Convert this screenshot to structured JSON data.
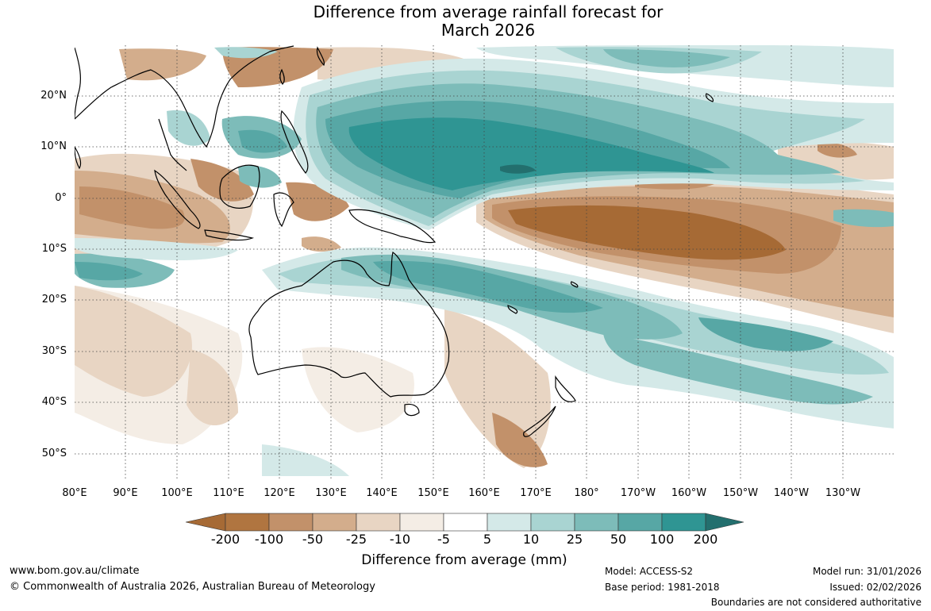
{
  "title": {
    "line1": "Difference from average rainfall forecast for",
    "line2": "March 2026"
  },
  "map": {
    "latitude_labels": [
      "20°N",
      "10°N",
      "0°",
      "10°S",
      "20°S",
      "30°S",
      "40°S",
      "50°S"
    ],
    "longitude_labels": [
      "80°E",
      "90°E",
      "100°E",
      "110°E",
      "120°E",
      "130°E",
      "140°E",
      "150°E",
      "160°E",
      "170°E",
      "180°",
      "170°W",
      "160°W",
      "150°W",
      "140°W",
      "130°W"
    ],
    "extent": {
      "lon_min": 80,
      "lon_max": 240,
      "lat_min": -55,
      "lat_max": 30
    }
  },
  "legend": {
    "label": "Difference from average (mm)",
    "ticks": [
      "-200",
      "-100",
      "-50",
      "-25",
      "-10",
      "-5",
      "5",
      "10",
      "25",
      "50",
      "100",
      "200"
    ],
    "colors": [
      "#a66a35",
      "#b07540",
      "#c2916a",
      "#d3ad8c",
      "#e8d5c3",
      "#f4ede5",
      "#ffffff",
      "#d4e9e8",
      "#a9d4d2",
      "#7dbcb9",
      "#57a7a5",
      "#2f9593",
      "#236f6e"
    ]
  },
  "footer": {
    "website": "www.bom.gov.au/climate",
    "copyright": "© Commonwealth of Australia 2026, Australian Bureau of Meteorology",
    "model": "Model: ACCESS-S2",
    "base_period": "Base period: 1981-2018",
    "model_run": "Model run: 31/01/2026",
    "issued": "Issued: 02/02/2026",
    "disclaimer": "Boundaries are not considered authoritative"
  }
}
